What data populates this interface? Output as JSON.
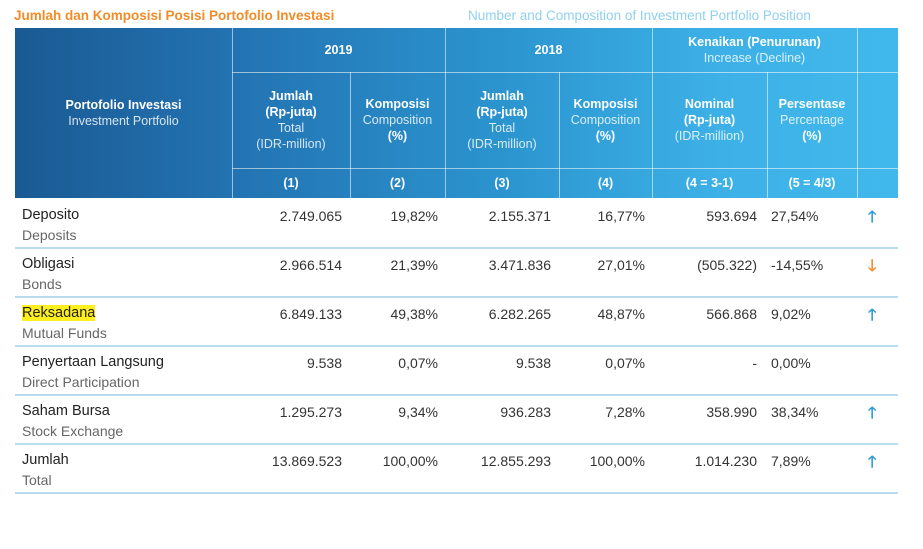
{
  "title_id": "Jumlah dan Komposisi Posisi Portofolio Investasi",
  "title_en": "Number and Composition of Investment Portfolio Position",
  "colors": {
    "title_accent": "#f28c28",
    "title_en": "#8fd0ef",
    "up": "#2f9ad4",
    "down": "#f28c28",
    "highlight": "#ffef1e"
  },
  "header": {
    "portfolio_id": "Portofolio Investasi",
    "portfolio_en": "Investment Portfolio",
    "year_2019": "2019",
    "year_2018": "2018",
    "change_id": "Kenaikan (Penurunan)",
    "change_en": "Increase (Decline)",
    "total_2019": {
      "l1": "Jumlah",
      "l2": "(Rp-juta)",
      "l3": "Total",
      "l4": "(IDR-million)"
    },
    "comp_2019": {
      "l1": "Komposisi",
      "l2": "Composition",
      "l3": "(%)"
    },
    "total_2018": {
      "l1": "Jumlah",
      "l2": "(Rp-juta)",
      "l3": "Total",
      "l4": "(IDR-million)"
    },
    "comp_2018": {
      "l1": "Komposisi",
      "l2": "Composition",
      "l3": "(%)"
    },
    "nominal": {
      "l1": "Nominal",
      "l2": "(Rp-juta)",
      "l3": "(IDR-million)"
    },
    "percent": {
      "l1": "Persentase",
      "l2": "Percentage",
      "l3": "(%)"
    },
    "col_codes": [
      "(1)",
      "(2)",
      "(3)",
      "(4)",
      "(4 = 3-1)",
      "(5 = 4/3)"
    ]
  },
  "rows": [
    {
      "name_id": "Deposito",
      "name_en": "Deposits",
      "total_2019": "2.749.065",
      "comp_2019": "19,82%",
      "total_2018": "2.155.371",
      "comp_2018": "16,77%",
      "nominal": "593.694",
      "percent": "27,54%",
      "trend": "up",
      "arrow": "🡑"
    },
    {
      "name_id": "Obligasi",
      "name_en": "Bonds",
      "total_2019": "2.966.514",
      "comp_2019": "21,39%",
      "total_2018": "3.471.836",
      "comp_2018": "27,01%",
      "nominal": "(505.322)",
      "percent": "-14,55%",
      "trend": "down",
      "arrow": "🡓"
    },
    {
      "name_id": "Reksadana",
      "name_en": "Mutual Funds",
      "total_2019": "6.849.133",
      "comp_2019": "49,38%",
      "total_2018": "6.282.265",
      "comp_2018": "48,87%",
      "nominal": "566.868",
      "percent": "9,02%",
      "trend": "up",
      "arrow": "🡑",
      "highlight": true
    },
    {
      "name_id": "Penyertaan Langsung",
      "name_en": "Direct Participation",
      "total_2019": "9.538",
      "comp_2019": "0,07%",
      "total_2018": "9.538",
      "comp_2018": "0,07%",
      "nominal": "-",
      "percent": "0,00%",
      "trend": "none",
      "arrow": ""
    },
    {
      "name_id": "Saham Bursa",
      "name_en": "Stock Exchange",
      "total_2019": "1.295.273",
      "comp_2019": "9,34%",
      "total_2018": "936.283",
      "comp_2018": "7,28%",
      "nominal": "358.990",
      "percent": "38,34%",
      "trend": "up",
      "arrow": "🡑"
    },
    {
      "name_id": "Jumlah",
      "name_en": "Total",
      "total_2019": "13.869.523",
      "comp_2019": "100,00%",
      "total_2018": "12.855.293",
      "comp_2018": "100,00%",
      "nominal": "1.014.230",
      "percent": "7,89%",
      "trend": "up",
      "arrow": "🡑"
    }
  ]
}
